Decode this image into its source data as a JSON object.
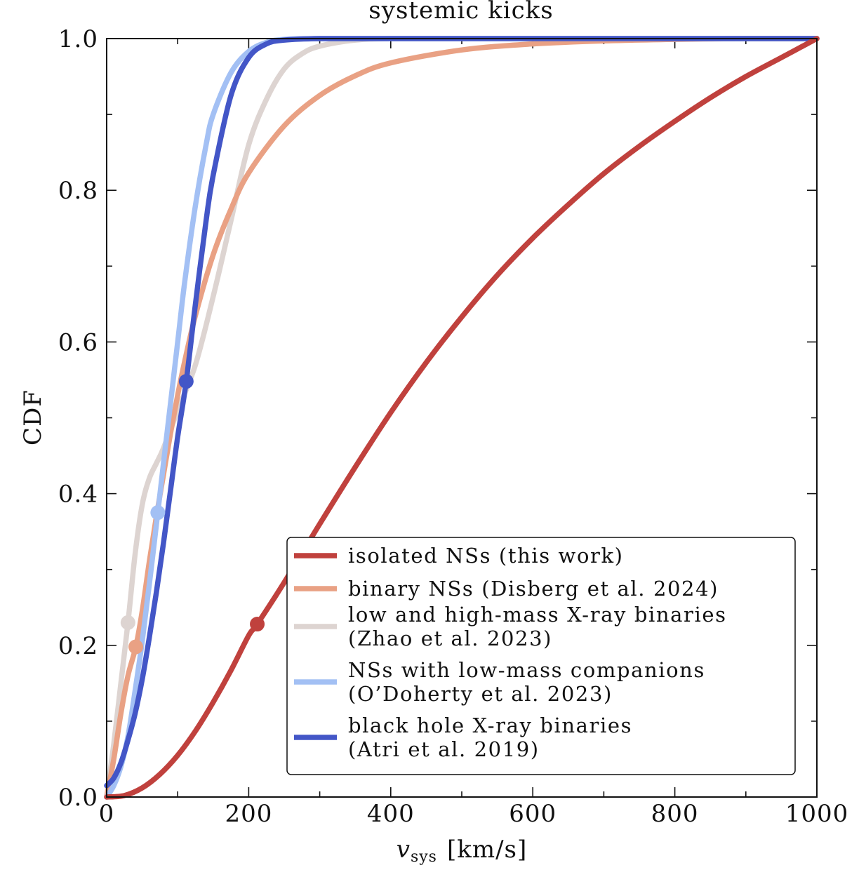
{
  "chart_data": {
    "type": "line",
    "title": "systemic kicks",
    "xlabel": "v",
    "xlabel_sub": "sys",
    "xlabel_unit": "[km/s]",
    "ylabel": "CDF",
    "xlim": [
      0,
      1000
    ],
    "ylim": [
      0,
      1.0
    ],
    "x_ticks": [
      0,
      200,
      400,
      600,
      800,
      1000
    ],
    "x_tick_labels": [
      "0",
      "200",
      "400",
      "600",
      "800",
      "1000"
    ],
    "y_ticks": [
      0.0,
      0.2,
      0.4,
      0.6,
      0.8,
      1.0
    ],
    "y_tick_labels": [
      "0.0",
      "0.2",
      "0.4",
      "0.6",
      "0.8",
      "1.0"
    ],
    "grid": false,
    "legend_position": "lower-right",
    "series": [
      {
        "name": "isolated NSs (this work)",
        "label_lines": [
          "isolated NSs (this work)"
        ],
        "color": "#c0413d",
        "x": [
          0,
          25,
          50,
          75,
          100,
          125,
          150,
          175,
          200,
          212,
          250,
          300,
          350,
          400,
          450,
          500,
          550,
          600,
          650,
          700,
          750,
          800,
          850,
          900,
          950,
          1000
        ],
        "y": [
          0.0,
          0.002,
          0.012,
          0.03,
          0.055,
          0.087,
          0.125,
          0.167,
          0.213,
          0.228,
          0.283,
          0.36,
          0.435,
          0.507,
          0.573,
          0.633,
          0.688,
          0.737,
          0.781,
          0.822,
          0.858,
          0.891,
          0.922,
          0.95,
          0.975,
          1.0
        ],
        "marker": {
          "x": 212,
          "y": 0.228
        }
      },
      {
        "name": "binary NSs (Disberg et al. 2024)",
        "label_lines": [
          "binary NSs (Disberg et al. 2024)"
        ],
        "color": "#e9a184",
        "x": [
          0,
          10,
          20,
          30,
          41,
          50,
          60,
          70,
          80,
          90,
          100,
          110,
          125,
          150,
          175,
          200,
          250,
          300,
          350,
          400,
          500,
          600,
          700,
          800,
          900,
          1000
        ],
        "y": [
          0.0,
          0.05,
          0.11,
          0.16,
          0.198,
          0.245,
          0.31,
          0.37,
          0.425,
          0.48,
          0.53,
          0.575,
          0.635,
          0.715,
          0.775,
          0.823,
          0.885,
          0.925,
          0.951,
          0.968,
          0.985,
          0.993,
          0.997,
          0.999,
          1.0,
          1.0
        ],
        "marker": {
          "x": 41,
          "y": 0.198
        }
      },
      {
        "name": "low and high-mass X-ray binaries (Zhao et al. 2023)",
        "label_lines": [
          "low and high-mass X-ray binaries",
          "(Zhao et al. 2023)"
        ],
        "color": "#ddd4d1",
        "x": [
          0,
          10,
          20,
          30,
          40,
          50,
          60,
          70,
          80,
          100,
          125,
          150,
          175,
          200,
          225,
          250,
          275,
          300,
          350,
          400,
          500,
          1000
        ],
        "y": [
          0.0,
          0.07,
          0.15,
          0.23,
          0.32,
          0.385,
          0.42,
          0.44,
          0.46,
          0.51,
          0.57,
          0.66,
          0.76,
          0.86,
          0.92,
          0.96,
          0.98,
          0.99,
          0.998,
          1.0,
          1.0,
          1.0
        ],
        "marker": {
          "x": 30,
          "y": 0.23
        }
      },
      {
        "name": "NSs with low-mass companions (O'Doherty et al. 2023)",
        "label_lines": [
          "NSs with low-mass companions",
          "(O’Doherty et al. 2023)"
        ],
        "color": "#a3c0f4",
        "x": [
          0,
          10,
          20,
          30,
          40,
          50,
          60,
          72,
          80,
          90,
          100,
          110,
          125,
          140,
          150,
          175,
          200,
          225,
          250,
          300,
          400,
          1000
        ],
        "y": [
          0.0,
          0.015,
          0.04,
          0.08,
          0.14,
          0.205,
          0.28,
          0.375,
          0.44,
          0.52,
          0.6,
          0.68,
          0.78,
          0.86,
          0.9,
          0.955,
          0.983,
          0.995,
          0.999,
          1.0,
          1.0,
          1.0
        ],
        "marker": {
          "x": 72,
          "y": 0.375
        }
      },
      {
        "name": "black hole X-ray binaries (Atri et al. 2019)",
        "label_lines": [
          "black hole X-ray binaries",
          "(Atri et al. 2019)"
        ],
        "color": "#4356c7",
        "x": [
          0,
          10,
          20,
          30,
          40,
          50,
          60,
          70,
          80,
          90,
          100,
          112,
          125,
          140,
          150,
          175,
          200,
          225,
          250,
          300,
          400,
          1000
        ],
        "y": [
          0.015,
          0.025,
          0.045,
          0.075,
          0.11,
          0.155,
          0.21,
          0.27,
          0.335,
          0.405,
          0.475,
          0.548,
          0.65,
          0.76,
          0.82,
          0.925,
          0.975,
          0.993,
          0.998,
          1.0,
          1.0,
          1.0
        ],
        "marker": {
          "x": 112,
          "y": 0.548
        }
      }
    ]
  }
}
